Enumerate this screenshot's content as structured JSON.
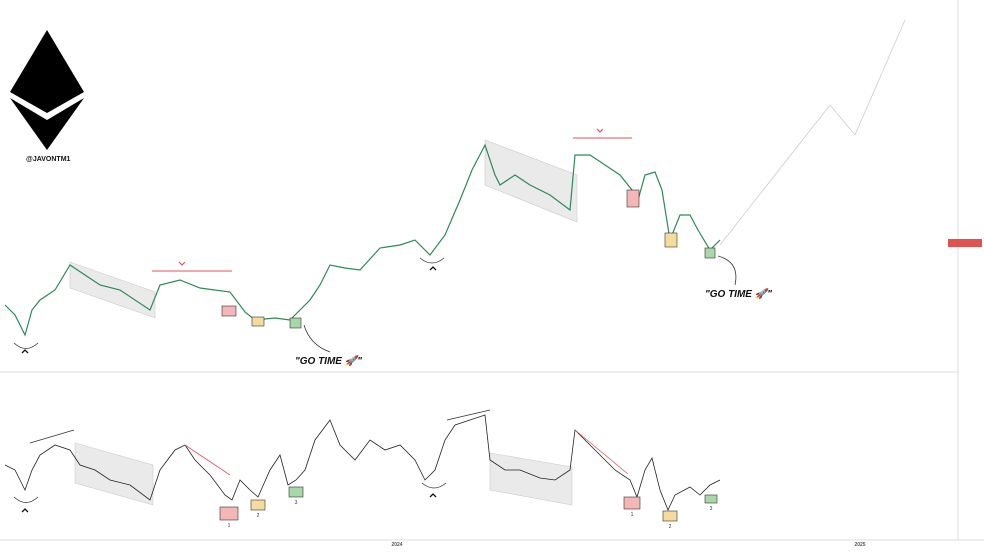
{
  "brand": {
    "handle": "@JAVONTM1"
  },
  "annotations": {
    "left_callout": "\"GO TIME 🚀\"",
    "right_callout": "\"GO TIME 🚀\""
  },
  "oscillator": {
    "steps_left": [
      "1",
      "2",
      "3"
    ],
    "steps_right": [
      "1",
      "2",
      "3"
    ]
  },
  "x_axis": {
    "labels": [
      "2024",
      "2025"
    ]
  }
}
